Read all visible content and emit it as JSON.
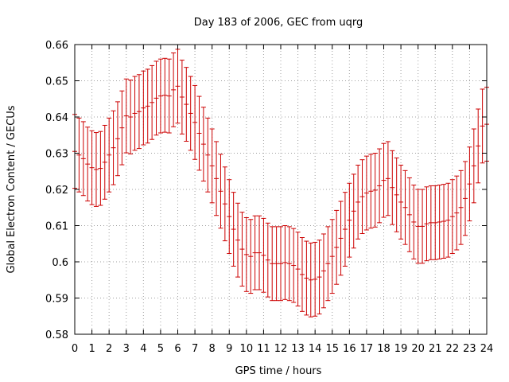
{
  "chart_data": {
    "type": "line",
    "title": "Day 183 of 2006, GEC from uqrg",
    "xlabel": "GPS time / hours",
    "ylabel": "Global Electron Content / GECUs",
    "xlim": [
      0,
      24
    ],
    "ylim": [
      0.58,
      0.66
    ],
    "grid": true,
    "x_ticks": [
      0,
      1,
      2,
      3,
      4,
      5,
      6,
      7,
      8,
      9,
      10,
      11,
      12,
      13,
      14,
      15,
      16,
      17,
      18,
      19,
      20,
      21,
      22,
      23,
      24
    ],
    "y_ticks": [
      0.58,
      0.59,
      0.6,
      0.61,
      0.62,
      0.63,
      0.64,
      0.65,
      0.66
    ],
    "x_tick_labels": [
      "0",
      "1",
      "2",
      "3",
      "4",
      "5",
      "6",
      "7",
      "8",
      "9",
      "10",
      "11",
      "12",
      "13",
      "14",
      "15",
      "16",
      "17",
      "18",
      "19",
      "20",
      "21",
      "22",
      "23",
      "24"
    ],
    "y_tick_labels": [
      "0.58",
      "0.59",
      "0.6",
      "0.61",
      "0.62",
      "0.63",
      "0.64",
      "0.65",
      "0.66"
    ],
    "error_half_width": 0.0102,
    "series": [
      {
        "color": "#cc0000",
        "x": [
          0,
          0.25,
          0.5,
          0.75,
          1,
          1.25,
          1.5,
          1.75,
          2,
          2.25,
          2.5,
          2.75,
          3,
          3.25,
          3.5,
          3.75,
          4,
          4.25,
          4.5,
          4.75,
          5,
          5.25,
          5.5,
          5.75,
          6,
          6.25,
          6.5,
          6.75,
          7,
          7.25,
          7.5,
          7.75,
          8,
          8.25,
          8.5,
          8.75,
          9,
          9.25,
          9.5,
          9.75,
          10,
          10.25,
          10.5,
          10.75,
          11,
          11.25,
          11.5,
          11.75,
          12,
          12.25,
          12.5,
          12.75,
          13,
          13.25,
          13.5,
          13.75,
          14,
          14.25,
          14.5,
          14.75,
          15,
          15.25,
          15.5,
          15.75,
          16,
          16.25,
          16.5,
          16.75,
          17,
          17.25,
          17.5,
          17.75,
          18,
          18.25,
          18.5,
          18.75,
          19,
          19.25,
          19.5,
          19.75,
          20,
          20.25,
          20.5,
          20.75,
          21,
          21.25,
          21.5,
          21.75,
          22,
          22.25,
          22.5,
          22.75,
          23,
          23.25,
          23.5,
          23.75,
          24
        ],
        "y": [
          0.6305,
          0.6295,
          0.6285,
          0.627,
          0.626,
          0.6255,
          0.6258,
          0.6275,
          0.6295,
          0.6315,
          0.634,
          0.637,
          0.6403,
          0.64,
          0.641,
          0.6415,
          0.6425,
          0.643,
          0.644,
          0.6452,
          0.6458,
          0.646,
          0.6458,
          0.6475,
          0.6485,
          0.6455,
          0.6435,
          0.641,
          0.6385,
          0.6355,
          0.6325,
          0.6295,
          0.6265,
          0.623,
          0.6195,
          0.616,
          0.6125,
          0.609,
          0.606,
          0.6035,
          0.602,
          0.6015,
          0.6025,
          0.6025,
          0.6018,
          0.6005,
          0.5995,
          0.5995,
          0.5995,
          0.5998,
          0.5995,
          0.599,
          0.598,
          0.5965,
          0.5955,
          0.595,
          0.5952,
          0.5958,
          0.5975,
          0.5995,
          0.6015,
          0.604,
          0.6065,
          0.609,
          0.6115,
          0.614,
          0.6165,
          0.618,
          0.619,
          0.6195,
          0.6198,
          0.621,
          0.6225,
          0.623,
          0.6205,
          0.6185,
          0.6165,
          0.615,
          0.613,
          0.611,
          0.6098,
          0.6098,
          0.6105,
          0.6108,
          0.6108,
          0.611,
          0.6112,
          0.6115,
          0.6125,
          0.6135,
          0.615,
          0.6175,
          0.6215,
          0.6265,
          0.632,
          0.6375,
          0.638
        ]
      }
    ]
  }
}
